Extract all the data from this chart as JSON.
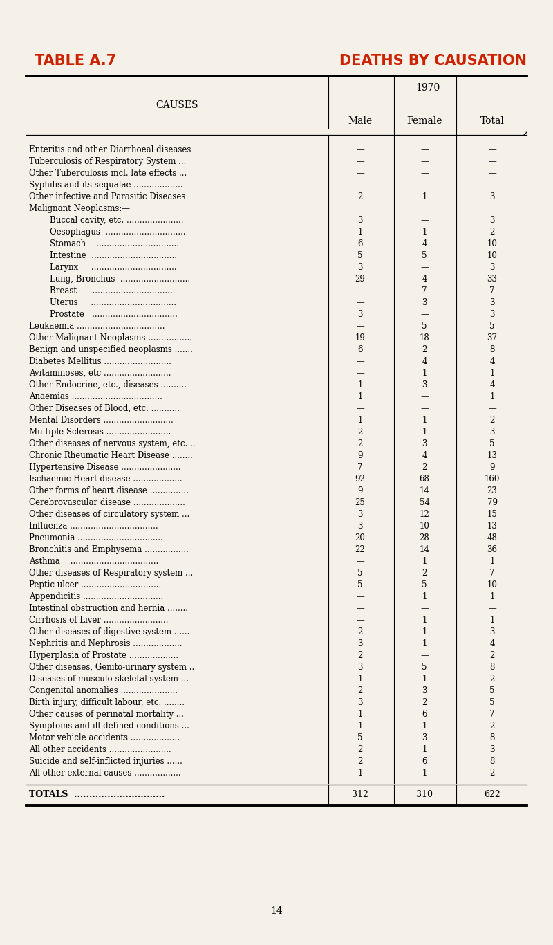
{
  "title_left": "TABLE A.7",
  "title_right": "DEATHS BY CAUSATION",
  "title_color": "#cc2200",
  "year_label": "1970",
  "causes_header": "CAUSES",
  "bg_color": "#f5f0e8",
  "rows": [
    {
      "cause": "Enteritis and other Diarrhoeal diseases",
      "male": "—",
      "female": "—",
      "total": "—",
      "indent": false
    },
    {
      "cause": "Tuberculosis of Respiratory System ...",
      "male": "—",
      "female": "—",
      "total": "—",
      "indent": false
    },
    {
      "cause": "Other Tuberculosis incl. late effects ...",
      "male": "—",
      "female": "—",
      "total": "—",
      "indent": false
    },
    {
      "cause": "Syphilis and its sequalae ...................",
      "male": "—",
      "female": "—",
      "total": "—",
      "indent": false
    },
    {
      "cause": "Other infective and Parasitic Diseases",
      "male": "2",
      "female": "1",
      "total": "3",
      "indent": false
    },
    {
      "cause": "Malignant Neoplasms:—",
      "male": "",
      "female": "",
      "total": "",
      "indent": false
    },
    {
      "cause": "Buccal cavity, etc. ......................",
      "male": "3",
      "female": "—",
      "total": "3",
      "indent": true
    },
    {
      "cause": "Oesophagus  ...............................",
      "male": "1",
      "female": "1",
      "total": "2",
      "indent": true
    },
    {
      "cause": "Stomach    ................................",
      "male": "6",
      "female": "4",
      "total": "10",
      "indent": true
    },
    {
      "cause": "Intestine  .................................",
      "male": "5",
      "female": "5",
      "total": "10",
      "indent": true
    },
    {
      "cause": "Larynx     .................................",
      "male": "3",
      "female": "—",
      "total": "3",
      "indent": true
    },
    {
      "cause": "Lung, Bronchus  ...........................",
      "male": "29",
      "female": "4",
      "total": "33",
      "indent": true
    },
    {
      "cause": "Breast     .................................",
      "male": "—",
      "female": "7",
      "total": "7",
      "indent": true
    },
    {
      "cause": "Uterus     .................................",
      "male": "—",
      "female": "3",
      "total": "3",
      "indent": true
    },
    {
      "cause": "Prostate   .................................",
      "male": "3",
      "female": "—",
      "total": "3",
      "indent": true
    },
    {
      "cause": "Leukaemia ..................................",
      "male": "—",
      "female": "5",
      "total": "5",
      "indent": false
    },
    {
      "cause": "Other Malignant Neoplasms .................",
      "male": "19",
      "female": "18",
      "total": "37",
      "indent": false
    },
    {
      "cause": "Benign and unspecified neoplasms .......",
      "male": "6",
      "female": "2",
      "total": "8",
      "indent": false
    },
    {
      "cause": "Diabetes Mellitus ..........................",
      "male": "—",
      "female": "4",
      "total": "4",
      "indent": false
    },
    {
      "cause": "Avitaminoses, etc ..........................",
      "male": "—",
      "female": "1",
      "total": "1",
      "indent": false
    },
    {
      "cause": "Other Endocrine, etc., diseases ..........",
      "male": "1",
      "female": "3",
      "total": "4",
      "indent": false
    },
    {
      "cause": "Anaemias ...................................",
      "male": "1",
      "female": "—",
      "total": "1",
      "indent": false
    },
    {
      "cause": "Other Diseases of Blood, etc. ...........",
      "male": "—",
      "female": "—",
      "total": "—",
      "indent": false
    },
    {
      "cause": "Mental Disorders ...........................",
      "male": "1",
      "female": "1",
      "total": "2",
      "indent": false
    },
    {
      "cause": "Multiple Sclerosis .........................",
      "male": "2",
      "female": "1",
      "total": "3",
      "indent": false
    },
    {
      "cause": "Other diseases of nervous system, etc. ..",
      "male": "2",
      "female": "3",
      "total": "5",
      "indent": false
    },
    {
      "cause": "Chronic Rheumatic Heart Disease ........",
      "male": "9",
      "female": "4",
      "total": "13",
      "indent": false
    },
    {
      "cause": "Hypertensive Disease .......................",
      "male": "7",
      "female": "2",
      "total": "9",
      "indent": false
    },
    {
      "cause": "Ischaemic Heart disease ...................",
      "male": "92",
      "female": "68",
      "total": "160",
      "indent": false
    },
    {
      "cause": "Other forms of heart disease ...............",
      "male": "9",
      "female": "14",
      "total": "23",
      "indent": false
    },
    {
      "cause": "Cerebrovascular disease ....................",
      "male": "25",
      "female": "54",
      "total": "79",
      "indent": false
    },
    {
      "cause": "Other diseases of circulatory system ...",
      "male": "3",
      "female": "12",
      "total": "15",
      "indent": false
    },
    {
      "cause": "Influenza ..................................",
      "male": "3",
      "female": "10",
      "total": "13",
      "indent": false
    },
    {
      "cause": "Pneumonia .................................",
      "male": "20",
      "female": "28",
      "total": "48",
      "indent": false
    },
    {
      "cause": "Bronchitis and Emphysema .................",
      "male": "22",
      "female": "14",
      "total": "36",
      "indent": false
    },
    {
      "cause": "Asthma    ..................................",
      "male": "—",
      "female": "1",
      "total": "1",
      "indent": false
    },
    {
      "cause": "Other diseases of Respiratory system ...",
      "male": "5",
      "female": "2",
      "total": "7",
      "indent": false
    },
    {
      "cause": "Peptic ulcer ...............................",
      "male": "5",
      "female": "5",
      "total": "10",
      "indent": false
    },
    {
      "cause": "Appendicitis ...............................",
      "male": "—",
      "female": "1",
      "total": "1",
      "indent": false
    },
    {
      "cause": "Intestinal obstruction and hernia ........",
      "male": "—",
      "female": "—",
      "total": "—",
      "indent": false
    },
    {
      "cause": "Cirrhosis of Liver .........................",
      "male": "—",
      "female": "1",
      "total": "1",
      "indent": false
    },
    {
      "cause": "Other diseases of digestive system ......",
      "male": "2",
      "female": "1",
      "total": "3",
      "indent": false
    },
    {
      "cause": "Nephritis and Nephrosis ...................",
      "male": "3",
      "female": "1",
      "total": "4",
      "indent": false
    },
    {
      "cause": "Hyperplasia of Prostate ...................",
      "male": "2",
      "female": "—",
      "total": "2",
      "indent": false
    },
    {
      "cause": "Other diseases, Genito-urinary system ..",
      "male": "3",
      "female": "5",
      "total": "8",
      "indent": false
    },
    {
      "cause": "Diseases of musculo-skeletal system ...",
      "male": "1",
      "female": "1",
      "total": "2",
      "indent": false
    },
    {
      "cause": "Congenital anomalies ......................",
      "male": "2",
      "female": "3",
      "total": "5",
      "indent": false
    },
    {
      "cause": "Birth injury, difficult labour, etc. ........",
      "male": "3",
      "female": "2",
      "total": "5",
      "indent": false
    },
    {
      "cause": "Other causes of perinatal mortality ...",
      "male": "1",
      "female": "6",
      "total": "7",
      "indent": false
    },
    {
      "cause": "Symptoms and ill-defined conditions ...",
      "male": "1",
      "female": "1",
      "total": "2",
      "indent": false
    },
    {
      "cause": "Motor vehicle accidents ...................",
      "male": "5",
      "female": "3",
      "total": "8",
      "indent": false
    },
    {
      "cause": "All other accidents ........................",
      "male": "2",
      "female": "1",
      "total": "3",
      "indent": false
    },
    {
      "cause": "Suicide and self-inflicted injuries ......",
      "male": "2",
      "female": "6",
      "total": "8",
      "indent": false
    },
    {
      "cause": "All other external causes ..................",
      "male": "1",
      "female": "1",
      "total": "2",
      "indent": false
    }
  ],
  "totals_row": {
    "cause": "TOTALS",
    "male": "312",
    "female": "310",
    "total": "622"
  },
  "page_number": "14"
}
